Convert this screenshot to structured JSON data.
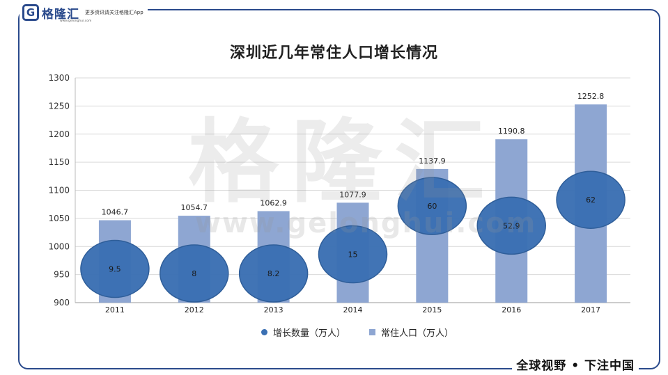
{
  "header": {
    "logo_text": "格隆汇",
    "logo_mark": "G",
    "tagline": "更多资讯请关注格隆汇App",
    "logo_sub": "www.gelonghui.com"
  },
  "footer": {
    "slogan": "全球视野 • 下注中国"
  },
  "watermark": {
    "cn": "格隆汇",
    "url": "www.gelonghui.com"
  },
  "colors": {
    "frame": "#2a4a8c",
    "bar": "#8ea6d2",
    "bubble": "#3b70b3",
    "bubble_edge": "#2f5e99",
    "grid": "#d9d9d9"
  },
  "chart_data": {
    "type": "bar",
    "title": "深圳近几年常住人口增长情况",
    "categories": [
      "2011",
      "2012",
      "2013",
      "2014",
      "2015",
      "2016",
      "2017"
    ],
    "ylim": [
      900,
      1300
    ],
    "yticks": [
      900,
      950,
      1000,
      1050,
      1100,
      1150,
      1200,
      1250,
      1300
    ],
    "grid": true,
    "legend_position": "bottom",
    "series": [
      {
        "name": "常住人口（万人）",
        "type": "bar",
        "values": [
          1046.7,
          1054.7,
          1062.9,
          1077.9,
          1137.9,
          1190.8,
          1252.8
        ]
      },
      {
        "name": "增长数量（万人）",
        "type": "bubble",
        "values": [
          9.5,
          8,
          8.2,
          15,
          60,
          52.9,
          62
        ],
        "labels": [
          "9.5",
          "8",
          "8.2",
          "15",
          "60",
          "52.9",
          "62"
        ]
      }
    ],
    "bubble_y_positions": [
      960,
      952,
      952,
      986,
      1072,
      1037,
      1083
    ]
  }
}
